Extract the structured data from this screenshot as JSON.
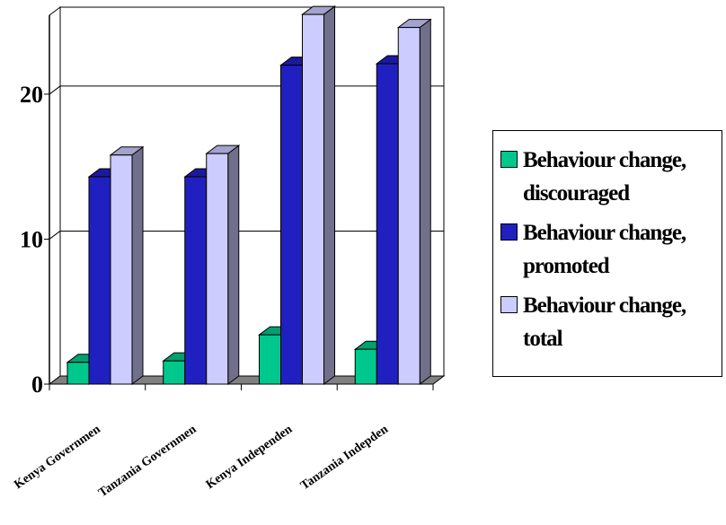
{
  "colors": {
    "background": "#ffffff",
    "gridline": "#000000",
    "floor": "#808080"
  },
  "chart_data": {
    "type": "bar",
    "view": "3d-clustered-column",
    "title": "",
    "xlabel": "",
    "ylabel": "",
    "ylim": [
      0,
      26
    ],
    "yticks": [
      0,
      10,
      20
    ],
    "grid": true,
    "legend_position": "right",
    "categories": [
      "Kenya Governmen",
      "Tanzania Governmen",
      "Kenya Independen",
      "Tanzania Indepden"
    ],
    "series": [
      {
        "name": "Behaviour change, discouraged",
        "color": "#00c88c",
        "values": [
          1.5,
          1.6,
          3.4,
          2.4
        ]
      },
      {
        "name": "Behaviour change, promoted",
        "color": "#2020c0",
        "values": [
          14.3,
          14.3,
          22.0,
          22.1
        ]
      },
      {
        "name": "Behaviour change, total",
        "color": "#ccccff",
        "values": [
          15.8,
          15.9,
          25.5,
          24.6
        ]
      }
    ]
  }
}
